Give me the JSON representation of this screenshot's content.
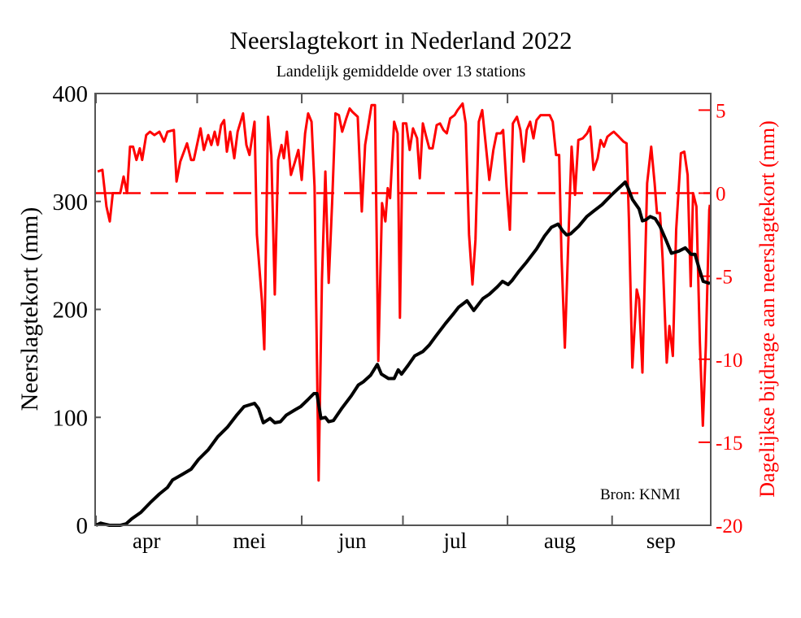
{
  "chart_data": {
    "type": "line",
    "title": "Neerslagtekort in Nederland 2022",
    "subtitle": "Landelijk gemiddelde over 13 stations",
    "ylabel": "Neerslagtekort (mm)",
    "y2label": "Dagelijkse bijdrage aan neerslagtekort (mm)",
    "source": "Bron: KNMI",
    "x_unit": "days since 1 April 2022",
    "xlim": [
      0,
      182
    ],
    "ylim": [
      0,
      400
    ],
    "y2lim": [
      -20,
      6
    ],
    "yticks": [
      "0",
      "100",
      "200",
      "300",
      "400"
    ],
    "yticks_values": [
      0,
      100,
      200,
      300,
      400
    ],
    "y2ticks": [
      "5",
      "0",
      "-5",
      "-10",
      "-15",
      "-20"
    ],
    "y2ticks_values": [
      5,
      0,
      -5,
      -10,
      -15,
      -20
    ],
    "month_ticks": [
      0,
      30,
      61,
      91,
      122,
      153
    ],
    "month_labels": [
      "apr",
      "mei",
      "jun",
      "jul",
      "aug",
      "sep"
    ],
    "month_label_positions": [
      15,
      45.5,
      76,
      106.5,
      137.5,
      167.5
    ],
    "reference_line": {
      "axis": "y2",
      "value": 0,
      "style": "dashed"
    },
    "colors": {
      "cumulative": "#000000",
      "daily": "#ff0000",
      "axis": "#555555"
    },
    "series": [
      {
        "name": "Neerslagtekort",
        "axis": "y",
        "color": "#000000",
        "points": [
          [
            0,
            0
          ],
          [
            1.4,
            2
          ],
          [
            2.7,
            1
          ],
          [
            4,
            0
          ],
          [
            7.2,
            0
          ],
          [
            9,
            1.5
          ],
          [
            10.6,
            6
          ],
          [
            13.3,
            12
          ],
          [
            16.1,
            21
          ],
          [
            18.8,
            29
          ],
          [
            21.2,
            35
          ],
          [
            22.7,
            42
          ],
          [
            25.5,
            47
          ],
          [
            28.2,
            52
          ],
          [
            30.4,
            61
          ],
          [
            33.3,
            70
          ],
          [
            36.1,
            82
          ],
          [
            39,
            91
          ],
          [
            41.7,
            102
          ],
          [
            43.9,
            110
          ],
          [
            47,
            113
          ],
          [
            48.2,
            108
          ],
          [
            49.6,
            95
          ],
          [
            51.6,
            99
          ],
          [
            53,
            95
          ],
          [
            54.7,
            96
          ],
          [
            56.4,
            102
          ],
          [
            59,
            107
          ],
          [
            60.7,
            110
          ],
          [
            62.7,
            116
          ],
          [
            64.6,
            122
          ],
          [
            65.5,
            122
          ],
          [
            66.7,
            99
          ],
          [
            68,
            100
          ],
          [
            69,
            96
          ],
          [
            70.4,
            97
          ],
          [
            72.8,
            108
          ],
          [
            75.7,
            120
          ],
          [
            77.8,
            130
          ],
          [
            79.3,
            133
          ],
          [
            81.4,
            139
          ],
          [
            83.4,
            149
          ],
          [
            84.6,
            140
          ],
          [
            86.7,
            136
          ],
          [
            88.4,
            136
          ],
          [
            89.6,
            144
          ],
          [
            90.6,
            140
          ],
          [
            92.5,
            148
          ],
          [
            94.5,
            157
          ],
          [
            96.9,
            161
          ],
          [
            98.8,
            167
          ],
          [
            100.7,
            175
          ],
          [
            103.6,
            187
          ],
          [
            106,
            196
          ],
          [
            107.5,
            202
          ],
          [
            110,
            208
          ],
          [
            112,
            199
          ],
          [
            114.7,
            210
          ],
          [
            116.6,
            214
          ],
          [
            119,
            221
          ],
          [
            120.5,
            226
          ],
          [
            122.2,
            223
          ],
          [
            123.4,
            227
          ],
          [
            125.3,
            235
          ],
          [
            127.7,
            244
          ],
          [
            130.6,
            256
          ],
          [
            133,
            268
          ],
          [
            135,
            276
          ],
          [
            137,
            279
          ],
          [
            138.3,
            273
          ],
          [
            139.5,
            269
          ],
          [
            140.7,
            270
          ],
          [
            143.1,
            277
          ],
          [
            145.5,
            286
          ],
          [
            147.5,
            291
          ],
          [
            150,
            297
          ],
          [
            152.8,
            306
          ],
          [
            155.2,
            313
          ],
          [
            156.9,
            318
          ],
          [
            157.8,
            312
          ],
          [
            159,
            302
          ],
          [
            161,
            293
          ],
          [
            162,
            282
          ],
          [
            163,
            283
          ],
          [
            164.3,
            286
          ],
          [
            165.8,
            284
          ],
          [
            167.2,
            277
          ],
          [
            169,
            264
          ],
          [
            170.6,
            252
          ],
          [
            172.8,
            254
          ],
          [
            174.7,
            257
          ],
          [
            176.4,
            251
          ],
          [
            177.6,
            251
          ],
          [
            178.8,
            238
          ],
          [
            180,
            226
          ],
          [
            182,
            224
          ]
        ]
      },
      {
        "name": "Dagelijkse bijdrage",
        "axis": "y2",
        "color": "#ff0000",
        "points": [
          [
            0.5,
            1.3
          ],
          [
            1.9,
            1.4
          ],
          [
            3.1,
            -0.8
          ],
          [
            4.1,
            -1.7
          ],
          [
            5,
            0
          ],
          [
            7.2,
            0
          ],
          [
            8.2,
            1.0
          ],
          [
            9.2,
            0
          ],
          [
            10.1,
            2.8
          ],
          [
            11,
            2.8
          ],
          [
            12,
            2.0
          ],
          [
            13,
            2.7
          ],
          [
            13.7,
            2.0
          ],
          [
            14.9,
            3.5
          ],
          [
            16,
            3.7
          ],
          [
            17.3,
            3.5
          ],
          [
            18.8,
            3.7
          ],
          [
            20.2,
            3.1
          ],
          [
            21.2,
            3.7
          ],
          [
            23.1,
            3.8
          ],
          [
            23.9,
            0.7
          ],
          [
            25,
            1.9
          ],
          [
            27,
            3.0
          ],
          [
            28.2,
            2.0
          ],
          [
            29,
            2.0
          ],
          [
            31,
            3.9
          ],
          [
            32,
            2.6
          ],
          [
            33.3,
            3.5
          ],
          [
            34.2,
            2.9
          ],
          [
            35.2,
            3.7
          ],
          [
            36.1,
            2.9
          ],
          [
            37.1,
            4.1
          ],
          [
            38,
            4.4
          ],
          [
            38.8,
            2.5
          ],
          [
            39.8,
            3.7
          ],
          [
            41,
            2.1
          ],
          [
            42,
            3.7
          ],
          [
            43.6,
            4.8
          ],
          [
            44.6,
            2.9
          ],
          [
            45.5,
            2.3
          ],
          [
            47,
            4.3
          ],
          [
            47.7,
            -2.5
          ],
          [
            49.2,
            -6.5
          ],
          [
            49.9,
            -9.4
          ],
          [
            51,
            4.6
          ],
          [
            52,
            2.3
          ],
          [
            53,
            -6.1
          ],
          [
            54,
            2.0
          ],
          [
            55,
            2.9
          ],
          [
            55.7,
            2.1
          ],
          [
            56.6,
            3.7
          ],
          [
            57.8,
            1.1
          ],
          [
            59,
            1.9
          ],
          [
            60,
            2.6
          ],
          [
            61,
            0.8
          ],
          [
            62,
            3.6
          ],
          [
            62.9,
            4.8
          ],
          [
            63.9,
            4.3
          ],
          [
            64.8,
            0.4
          ],
          [
            66,
            -17.3
          ],
          [
            67,
            -5.2
          ],
          [
            68,
            1.3
          ],
          [
            69,
            -5.4
          ],
          [
            70,
            -0.6
          ],
          [
            71,
            4.8
          ],
          [
            72,
            4.7
          ],
          [
            73,
            3.7
          ],
          [
            74.2,
            4.5
          ],
          [
            75.2,
            5.1
          ],
          [
            76,
            4.9
          ],
          [
            77.6,
            4.6
          ],
          [
            78.8,
            -1.1
          ],
          [
            79.8,
            2.9
          ],
          [
            81.7,
            5.3
          ],
          [
            82.7,
            5.3
          ],
          [
            83.7,
            -10.1
          ],
          [
            84.8,
            -0.6
          ],
          [
            85.8,
            -1.7
          ],
          [
            86.5,
            0.3
          ],
          [
            87.2,
            -0.3
          ],
          [
            88.4,
            4.3
          ],
          [
            89.4,
            3.6
          ],
          [
            90.1,
            -7.5
          ],
          [
            91,
            4.2
          ],
          [
            92,
            4.2
          ],
          [
            93,
            2.6
          ],
          [
            94,
            3.9
          ],
          [
            95.2,
            3.3
          ],
          [
            96,
            0.9
          ],
          [
            96.9,
            4.2
          ],
          [
            97.9,
            3.4
          ],
          [
            98.8,
            2.7
          ],
          [
            99.8,
            2.7
          ],
          [
            101,
            4.1
          ],
          [
            102,
            4.2
          ],
          [
            103,
            3.8
          ],
          [
            104,
            3.6
          ],
          [
            105,
            4.5
          ],
          [
            106.3,
            4.7
          ],
          [
            107.2,
            5.0
          ],
          [
            108.7,
            5.4
          ],
          [
            109.6,
            4.2
          ],
          [
            110.6,
            -2.5
          ],
          [
            111.6,
            -5.5
          ],
          [
            112.5,
            -2.8
          ],
          [
            113.5,
            4.3
          ],
          [
            114.5,
            5.0
          ],
          [
            115.7,
            2.6
          ],
          [
            116.6,
            0.8
          ],
          [
            117.8,
            2.6
          ],
          [
            118.8,
            3.6
          ],
          [
            120,
            3.6
          ],
          [
            120.7,
            3.8
          ],
          [
            121.7,
            0.4
          ],
          [
            122.7,
            -2.2
          ],
          [
            123.6,
            4.2
          ],
          [
            124.8,
            4.6
          ],
          [
            125.8,
            3.8
          ],
          [
            126.8,
            1.9
          ],
          [
            127.7,
            3.8
          ],
          [
            128.7,
            4.3
          ],
          [
            129.7,
            3.3
          ],
          [
            130.6,
            4.4
          ],
          [
            131.8,
            4.7
          ],
          [
            133.3,
            4.7
          ],
          [
            134.5,
            4.7
          ],
          [
            135.4,
            4.3
          ],
          [
            136.4,
            2.3
          ],
          [
            137.3,
            2.3
          ],
          [
            138,
            -3.8
          ],
          [
            139,
            -9.3
          ],
          [
            140,
            -3.0
          ],
          [
            141,
            2.8
          ],
          [
            142,
            -0.1
          ],
          [
            143,
            3.2
          ],
          [
            144.3,
            3.3
          ],
          [
            145.6,
            3.6
          ],
          [
            146.5,
            4.0
          ],
          [
            147.5,
            1.4
          ],
          [
            148.7,
            2.1
          ],
          [
            149.6,
            3.2
          ],
          [
            150.6,
            2.8
          ],
          [
            151.6,
            3.4
          ],
          [
            152.8,
            3.6
          ],
          [
            153.5,
            3.7
          ],
          [
            154.5,
            3.5
          ],
          [
            155,
            3.4
          ],
          [
            156.4,
            3.1
          ],
          [
            157.3,
            3.0
          ],
          [
            158,
            -1.6
          ],
          [
            159,
            -10.5
          ],
          [
            160.3,
            -5.8
          ],
          [
            161,
            -6.4
          ],
          [
            162,
            -10.8
          ],
          [
            163.4,
            0.6
          ],
          [
            164.6,
            2.8
          ],
          [
            165.6,
            0.6
          ],
          [
            166.3,
            -1.2
          ],
          [
            167.2,
            -1.2
          ],
          [
            168,
            -4.0
          ],
          [
            169.2,
            -10.2
          ],
          [
            170,
            -8.0
          ],
          [
            171,
            -9.8
          ],
          [
            172,
            -2.2
          ],
          [
            173.4,
            2.4
          ],
          [
            174.4,
            2.5
          ],
          [
            175.4,
            1.1
          ],
          [
            176.3,
            -5.6
          ],
          [
            177,
            0
          ],
          [
            178,
            -0.8
          ],
          [
            179,
            -8.9
          ],
          [
            179.9,
            -14.0
          ],
          [
            180.8,
            -9.2
          ],
          [
            181.8,
            -1.0
          ],
          [
            182,
            -0.7
          ]
        ]
      }
    ],
    "grid": false,
    "legend": "none"
  }
}
